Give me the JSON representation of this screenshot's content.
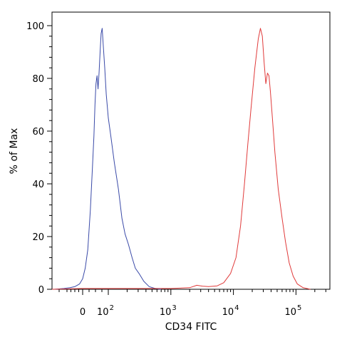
{
  "chart_data": {
    "type": "line",
    "title": "",
    "xlabel": "CD34 FITC",
    "ylabel": "% of Max",
    "x_scale": "biexponential",
    "ylim": [
      0,
      105
    ],
    "y_ticks": [
      0,
      20,
      40,
      60,
      80,
      100
    ],
    "x_ticks": [
      {
        "value": 0,
        "label": "0",
        "exp": ""
      },
      {
        "value": 100,
        "label": "10",
        "exp": "2"
      },
      {
        "value": 1000,
        "label": "10",
        "exp": "3"
      },
      {
        "value": 10000,
        "label": "10",
        "exp": "4"
      },
      {
        "value": 100000,
        "label": "10",
        "exp": "5"
      }
    ],
    "grid": false,
    "legend": "none",
    "series": [
      {
        "color": "#3a4aa8",
        "points": [
          [
            -180,
            0
          ],
          [
            -120,
            0.3
          ],
          [
            -80,
            0.6
          ],
          [
            -50,
            1
          ],
          [
            -20,
            2
          ],
          [
            0,
            4
          ],
          [
            10,
            8
          ],
          [
            20,
            15
          ],
          [
            30,
            30
          ],
          [
            38,
            46
          ],
          [
            44,
            58
          ],
          [
            48,
            70
          ],
          [
            52,
            78
          ],
          [
            56,
            81
          ],
          [
            60,
            76
          ],
          [
            64,
            82
          ],
          [
            68,
            90
          ],
          [
            72,
            97
          ],
          [
            76,
            99
          ],
          [
            80,
            93
          ],
          [
            86,
            84
          ],
          [
            92,
            74
          ],
          [
            100,
            65
          ],
          [
            110,
            58
          ],
          [
            125,
            48
          ],
          [
            145,
            38
          ],
          [
            165,
            27
          ],
          [
            185,
            21
          ],
          [
            210,
            17
          ],
          [
            240,
            12
          ],
          [
            270,
            8
          ],
          [
            310,
            6
          ],
          [
            370,
            3
          ],
          [
            450,
            1
          ],
          [
            560,
            0.3
          ],
          [
            700,
            0
          ]
        ]
      },
      {
        "color": "#e03a3a",
        "points": [
          [
            -200,
            0
          ],
          [
            0,
            0.3
          ],
          [
            100,
            0.3
          ],
          [
            300,
            0.3
          ],
          [
            1000,
            0.3
          ],
          [
            2000,
            0.6
          ],
          [
            2600,
            1.5
          ],
          [
            3200,
            1.2
          ],
          [
            4000,
            1
          ],
          [
            5500,
            1.3
          ],
          [
            7000,
            2.5
          ],
          [
            9000,
            6
          ],
          [
            11000,
            12
          ],
          [
            13000,
            24
          ],
          [
            15000,
            40
          ],
          [
            17000,
            55
          ],
          [
            19000,
            68
          ],
          [
            22000,
            84
          ],
          [
            25000,
            95
          ],
          [
            27000,
            99
          ],
          [
            29000,
            96
          ],
          [
            31000,
            86
          ],
          [
            33000,
            78
          ],
          [
            35000,
            82
          ],
          [
            37000,
            81
          ],
          [
            39000,
            75
          ],
          [
            42000,
            65
          ],
          [
            46000,
            52
          ],
          [
            52000,
            38
          ],
          [
            60000,
            27
          ],
          [
            68000,
            18
          ],
          [
            78000,
            10
          ],
          [
            90000,
            5
          ],
          [
            105000,
            2
          ],
          [
            130000,
            0.6
          ],
          [
            170000,
            0
          ]
        ]
      }
    ]
  }
}
